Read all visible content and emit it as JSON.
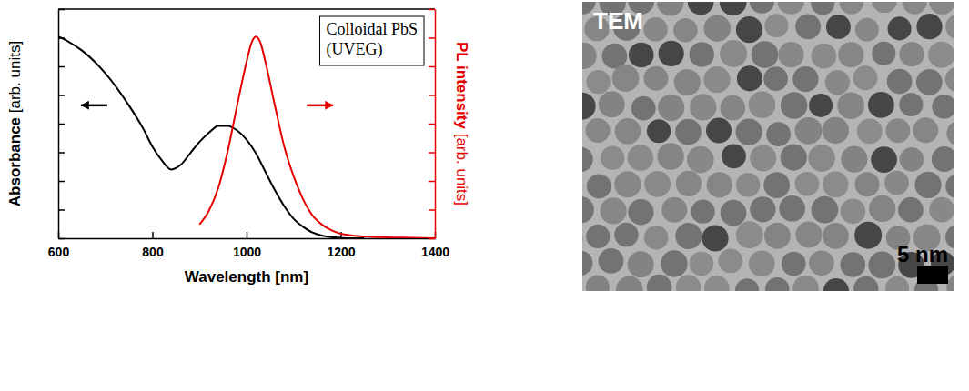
{
  "chart_data": {
    "type": "line",
    "x_label": "Wavelength [nm]",
    "y_label": "Absorbance [arb. units]",
    "y2_label": "PL intensity [arb. units]",
    "annotation": [
      "Colloidal PbS",
      "(UVEG)"
    ],
    "xlim": [
      600,
      1400
    ],
    "xticks": [
      600,
      800,
      1000,
      1200,
      1400
    ],
    "ylim": [
      0,
      1
    ],
    "yticks": [
      0,
      0.125,
      0.25,
      0.375,
      0.5,
      0.625,
      0.75,
      0.875,
      1
    ],
    "y2lim": [
      0,
      1
    ],
    "y2ticks": [
      0,
      0.125,
      0.25,
      0.375,
      0.5,
      0.625,
      0.75,
      0.875,
      1
    ],
    "tick_labels": "x",
    "grid": false,
    "series": [
      {
        "color": "#000000",
        "axis": "y",
        "line_style": "solid",
        "x": [
          600,
          620,
          650,
          700,
          750,
          780,
          800,
          820,
          840,
          860,
          880,
          900,
          920,
          940,
          960,
          980,
          1000,
          1020,
          1040,
          1060,
          1080,
          1100,
          1120,
          1140,
          1160,
          1180,
          1200,
          1220,
          1250
        ],
        "values": [
          0.88,
          0.86,
          0.82,
          0.72,
          0.58,
          0.48,
          0.4,
          0.34,
          0.3,
          0.32,
          0.37,
          0.42,
          0.46,
          0.49,
          0.49,
          0.47,
          0.43,
          0.37,
          0.29,
          0.21,
          0.14,
          0.085,
          0.05,
          0.025,
          0.012,
          0.005,
          0.002,
          0,
          0
        ]
      },
      {
        "color": "#e60000",
        "axis": "y2",
        "line_style": "solid",
        "x": [
          900,
          920,
          940,
          960,
          980,
          1000,
          1010,
          1020,
          1030,
          1040,
          1060,
          1080,
          1100,
          1120,
          1140,
          1160,
          1180,
          1200,
          1250,
          1300,
          1350,
          1400
        ],
        "values": [
          0.06,
          0.12,
          0.22,
          0.38,
          0.58,
          0.77,
          0.85,
          0.88,
          0.85,
          0.77,
          0.58,
          0.4,
          0.27,
          0.17,
          0.1,
          0.06,
          0.035,
          0.02,
          0.008,
          0.004,
          0.002,
          0
        ]
      }
    ]
  },
  "tem_image": {
    "label": "TEM",
    "scale_bar_label": "5 nm"
  }
}
